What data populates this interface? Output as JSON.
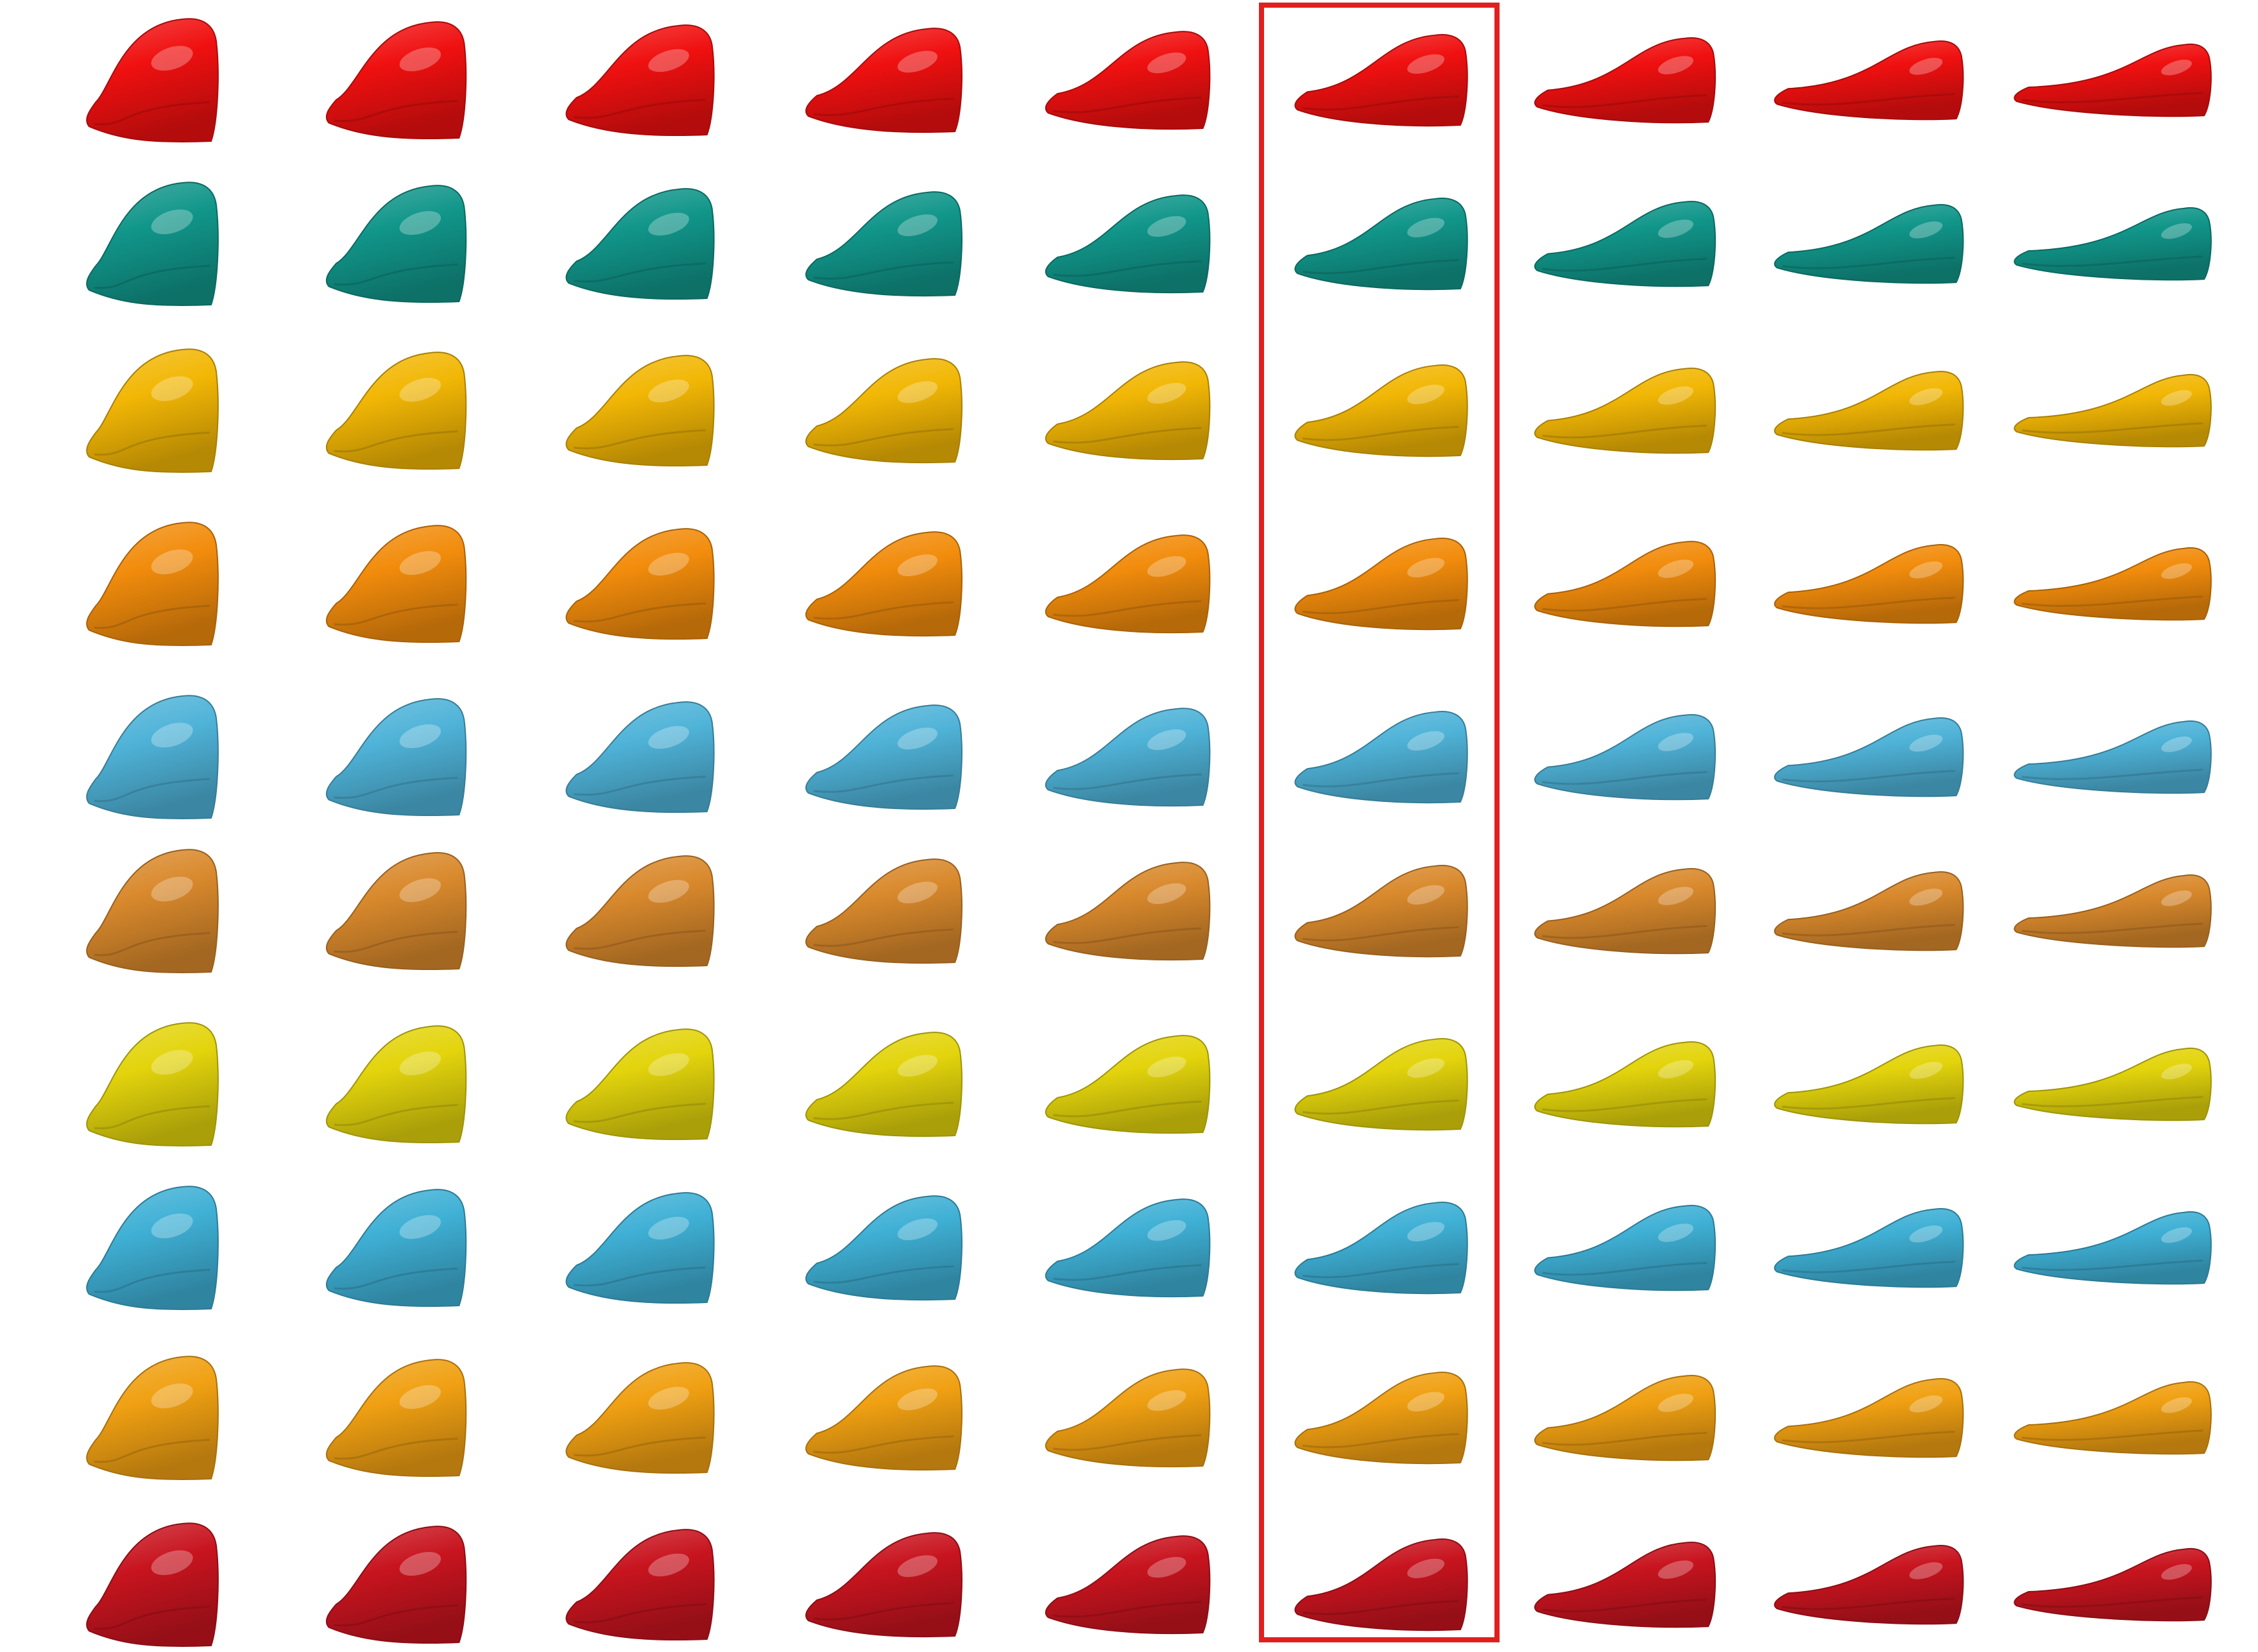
{
  "grid": {
    "columns": 9,
    "highlighted_column": 5,
    "rows": [
      {
        "name": "row-1",
        "color": "#f01010"
      },
      {
        "name": "row-2",
        "color": "#11968a"
      },
      {
        "name": "row-3",
        "color": "#f2b705"
      },
      {
        "name": "row-4",
        "color": "#f28c0c"
      },
      {
        "name": "row-5",
        "color": "#4fb3d8"
      },
      {
        "name": "row-6",
        "color": "#d9892c"
      },
      {
        "name": "row-7",
        "color": "#e3d40c"
      },
      {
        "name": "row-8",
        "color": "#3fb0d5"
      },
      {
        "name": "row-9",
        "color": "#f0a012"
      },
      {
        "name": "row-10",
        "color": "#c8141f"
      }
    ]
  },
  "highlight": {
    "color": "#e02020"
  }
}
